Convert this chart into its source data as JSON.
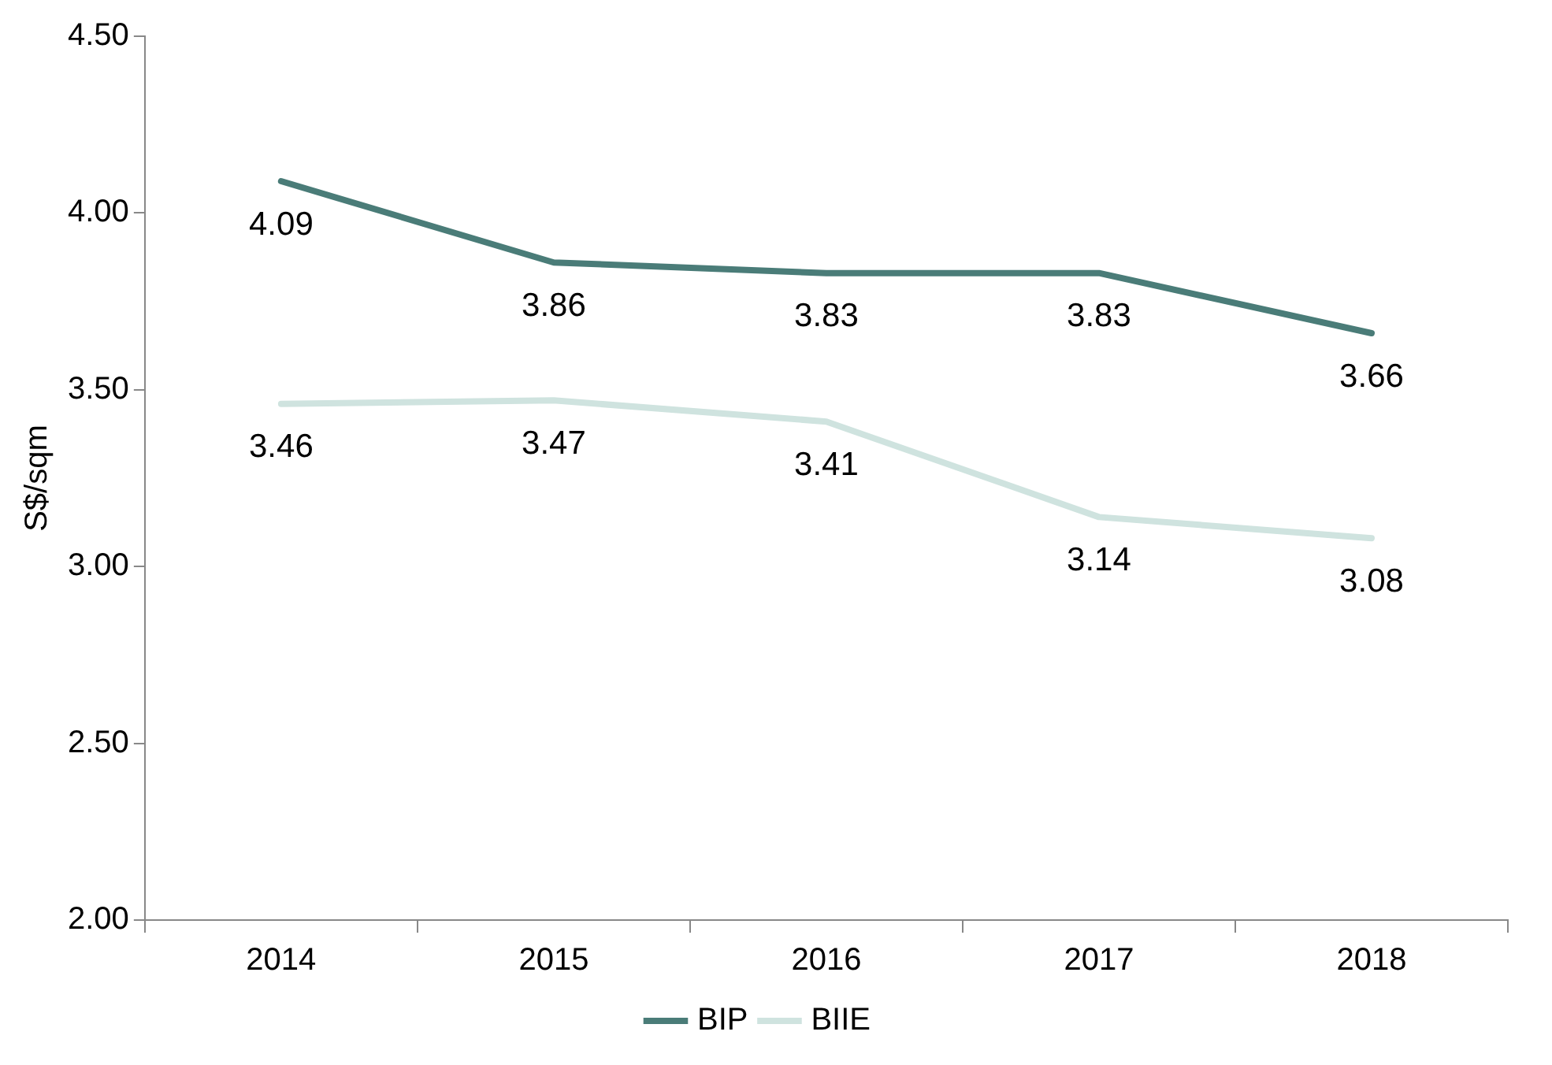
{
  "chart_data": {
    "type": "line",
    "ylabel": "S$/sqm",
    "categories": [
      "2014",
      "2015",
      "2016",
      "2017",
      "2018"
    ],
    "series": [
      {
        "name": "BIP",
        "color": "#4a7c78",
        "values": [
          4.09,
          3.86,
          3.83,
          3.83,
          3.66
        ]
      },
      {
        "name": "BIIE",
        "color": "#cfe3df",
        "values": [
          3.46,
          3.47,
          3.41,
          3.14,
          3.08
        ]
      }
    ],
    "ylim": [
      2,
      4.5
    ],
    "yticks": [
      {
        "value": 2,
        "label": "2.00"
      },
      {
        "value": 2.5,
        "label": "2.50"
      },
      {
        "value": 3,
        "label": "3.00"
      },
      {
        "value": 3.5,
        "label": "3.50"
      },
      {
        "value": 4,
        "label": "4.00"
      },
      {
        "value": 4.5,
        "label": "4.50"
      }
    ],
    "data_labels": true,
    "grid": false,
    "legend": "bottom",
    "marker": "none",
    "line_style": "solid"
  }
}
